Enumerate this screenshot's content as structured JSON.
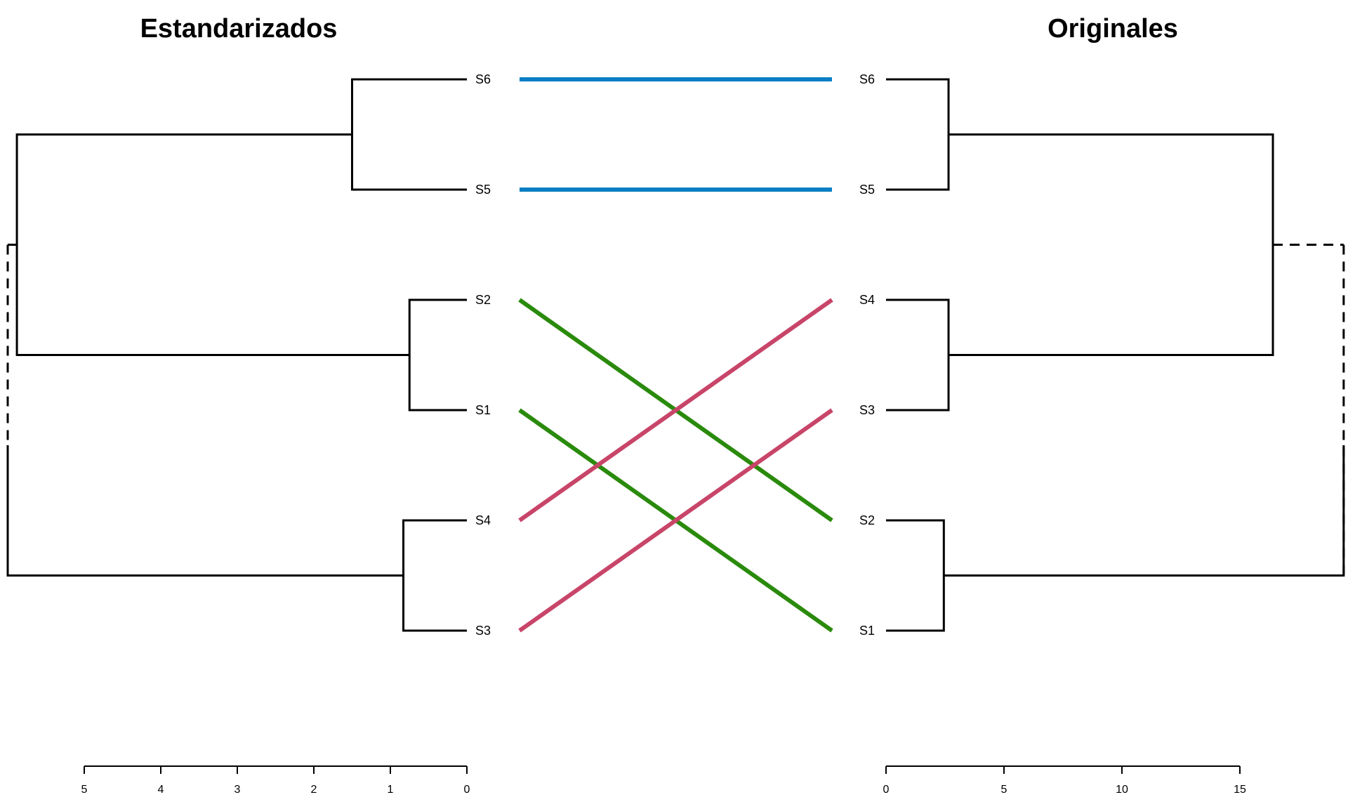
{
  "left": {
    "title": "Estandarizados",
    "order": [
      "S6",
      "S5",
      "S2",
      "S1",
      "S4",
      "S3"
    ],
    "axis_ticks": [
      5,
      4,
      3,
      2,
      1,
      0
    ],
    "merges": [
      {
        "a": "S6",
        "b": "S5",
        "height": 1.5
      },
      {
        "a": "S2",
        "b": "S1",
        "height": 0.75
      },
      {
        "a": "S4",
        "b": "S3",
        "height": 0.83
      },
      {
        "a": "S65",
        "b": "S21",
        "height": 5.88
      },
      {
        "a": "root",
        "b": "S43",
        "height": 6.0
      }
    ]
  },
  "right": {
    "title": "Originales",
    "order": [
      "S6",
      "S5",
      "S4",
      "S3",
      "S2",
      "S1"
    ],
    "axis_ticks": [
      0,
      5,
      10,
      15
    ],
    "merges": [
      {
        "a": "S6",
        "b": "S5",
        "height": 2.65
      },
      {
        "a": "S4",
        "b": "S3",
        "height": 2.65
      },
      {
        "a": "S2",
        "b": "S1",
        "height": 2.45
      },
      {
        "a": "S65",
        "b": "S43",
        "height": 16.4
      },
      {
        "a": "root",
        "b": "S21",
        "height": 19.4
      }
    ]
  },
  "connectors": [
    {
      "from": "S6",
      "to": "S6",
      "color": "#0A7FC4"
    },
    {
      "from": "S5",
      "to": "S5",
      "color": "#0A7FC4"
    },
    {
      "from": "S2",
      "to": "S2",
      "color": "#2A8A0C"
    },
    {
      "from": "S1",
      "to": "S1",
      "color": "#2A8A0C"
    },
    {
      "from": "S4",
      "to": "S4",
      "color": "#C84569"
    },
    {
      "from": "S3",
      "to": "S3",
      "color": "#C84569"
    }
  ]
}
